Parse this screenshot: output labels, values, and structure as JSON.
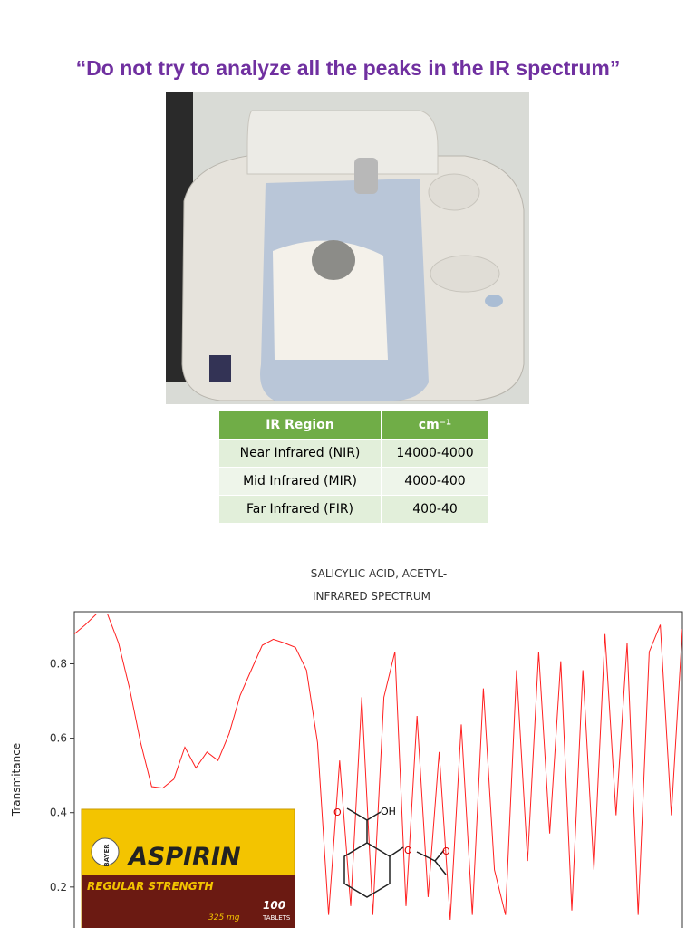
{
  "title": "“Do not try to analyze all the peaks in the IR spectrum”",
  "table": {
    "header": [
      "IR Region",
      "cm⁻¹"
    ],
    "rows": [
      [
        "Near Infrared (NIR)",
        "14000-4000"
      ],
      [
        "Mid Infrared (MIR)",
        "4000-400"
      ],
      [
        "Far Infrared (FIR)",
        "400-40"
      ]
    ]
  },
  "chart_data": {
    "type": "line",
    "title": "SALICYLIC ACID, ACETYL-",
    "subtitle": "INFRARED SPECTRUM",
    "y_label": "Transmitance",
    "color": "#ff2020",
    "values": [
      0.88,
      0.905,
      0.934,
      0.934,
      0.856,
      0.734,
      0.588,
      0.47,
      0.466,
      0.49,
      0.576,
      0.52,
      0.563,
      0.54,
      0.612,
      0.715,
      0.783,
      0.85,
      0.866,
      0.856,
      0.844,
      0.783,
      0.588,
      0.125,
      0.54,
      0.149,
      0.71,
      0.125,
      0.71,
      0.832,
      0.149,
      0.66,
      0.173,
      0.563,
      0.112,
      0.637,
      0.125,
      0.734,
      0.246,
      0.125,
      0.783,
      0.27,
      0.832,
      0.344,
      0.807,
      0.137,
      0.783,
      0.246,
      0.88,
      0.393,
      0.856,
      0.125,
      0.832,
      0.905,
      0.393,
      0.893
    ],
    "ylim": [
      0.09,
      0.94
    ],
    "yticks": [
      0.2,
      0.4,
      0.6,
      0.8
    ]
  },
  "aspirin_box": {
    "brand": "ASPIRIN",
    "strength": "REGULAR STRENGTH",
    "count": "100",
    "unit": "TABLETS",
    "dose": "325 mg",
    "maker": "BAYER"
  },
  "molecule": {
    "labels": [
      "O",
      "OH",
      "O",
      "O"
    ]
  }
}
